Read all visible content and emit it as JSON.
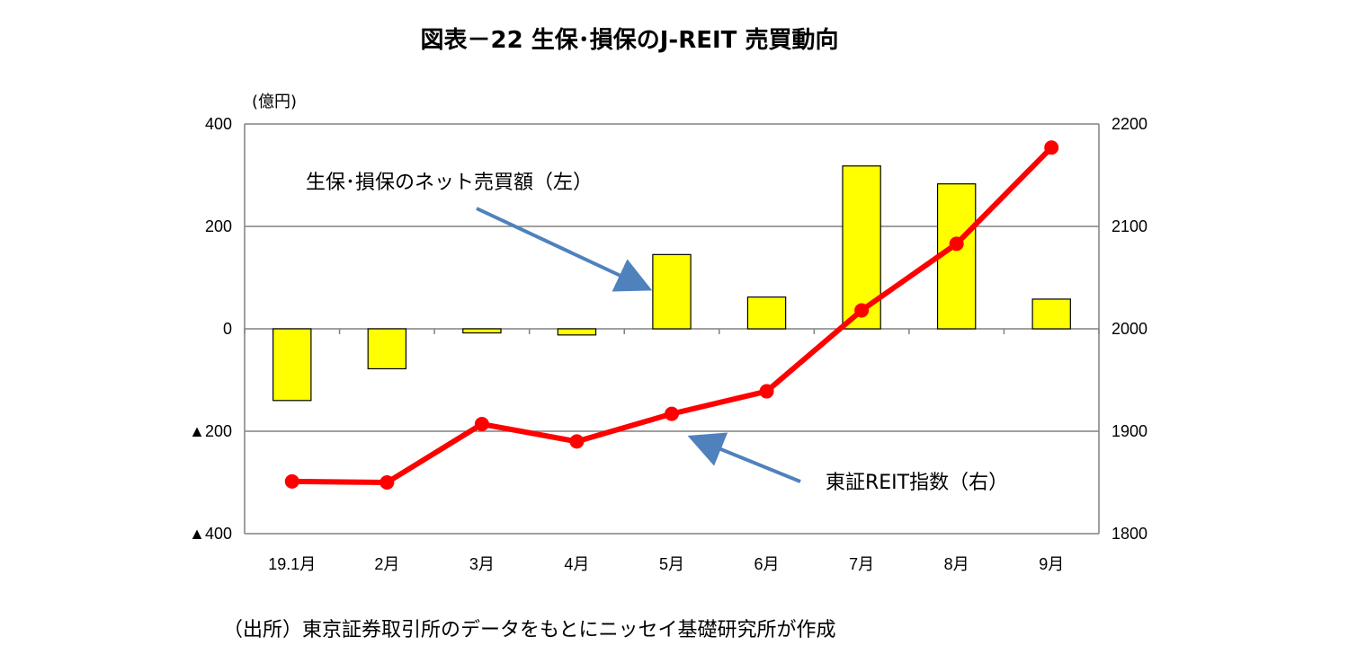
{
  "title": "図表－22  生保･損保のJ-REIT 売買動向",
  "left_axis_unit": "(億円)",
  "source_note": "（出所）東京証券取引所のデータをもとにニッセイ基礎研究所が作成",
  "colors": {
    "bar_fill": "#ffff00",
    "bar_stroke": "#000000",
    "line": "#ff0000",
    "arrow": "#4f81bd",
    "grid": "#808080"
  },
  "chart_data": {
    "type": "bar+line",
    "categories": [
      "19.1月",
      "2月",
      "3月",
      "4月",
      "5月",
      "6月",
      "7月",
      "8月",
      "9月"
    ],
    "left_axis": {
      "ylim": [
        -400,
        400
      ],
      "ticks": [
        400,
        200,
        0,
        -200,
        -400
      ],
      "tick_labels": [
        "400",
        "200",
        "0",
        "▲200",
        "▲400"
      ]
    },
    "right_axis": {
      "ylim": [
        1800,
        2200
      ],
      "ticks": [
        2200,
        2100,
        2000,
        1900,
        1800
      ],
      "tick_labels": [
        "2200",
        "2100",
        "2000",
        "1900",
        "1800"
      ]
    },
    "series": [
      {
        "name": "生保･損保のネット売買額（左）",
        "type": "bar",
        "axis": "left",
        "values": [
          -140,
          -78,
          -8,
          -12,
          145,
          62,
          318,
          283,
          58
        ]
      },
      {
        "name": "東証REIT指数（右）",
        "type": "line",
        "axis": "right",
        "values": [
          1851,
          1850,
          1907,
          1890,
          1917,
          1939,
          2018,
          2083,
          2177
        ]
      }
    ],
    "grid": true
  }
}
